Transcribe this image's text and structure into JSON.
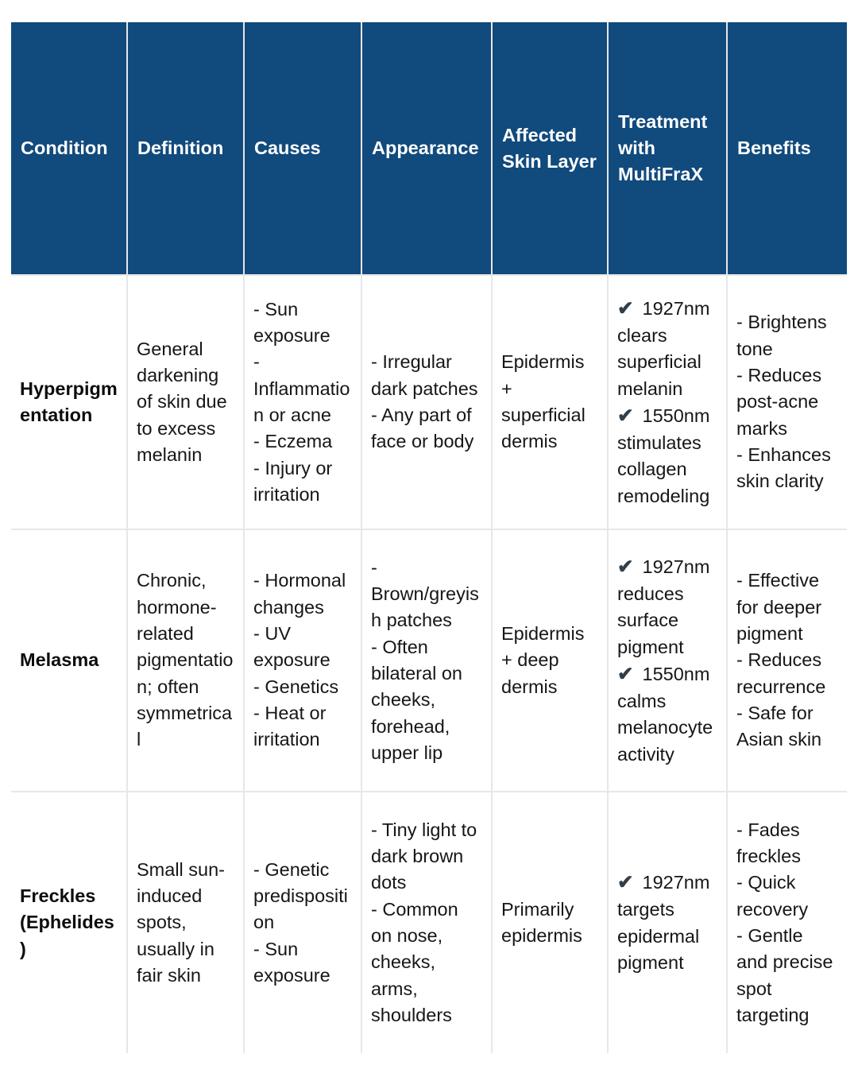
{
  "theme": {
    "accent_color": "#114A7C",
    "header_text_color": "#FFFFFF",
    "check_color": "#333E48",
    "grid_line_color": "#E7E7E7",
    "check_glyph": "✔"
  },
  "table": {
    "columns": [
      "Condition",
      "Definition",
      "Causes",
      "Appearance",
      "Affected Skin Layer",
      "Treatment with MultiFraX",
      "Benefits"
    ],
    "rows": [
      {
        "condition": "Hyperpigmentation",
        "definition": "General darkening of skin due to excess melanin",
        "causes": [
          "- Sun exposure",
          "- Inflammation or acne",
          "- Eczema",
          "- Injury or irritation"
        ],
        "appearance": [
          "- Irregular dark patches",
          "- Any part of face or body"
        ],
        "affected_skin_layer": "Epidermis + superficial dermis",
        "treatment": [
          "1927nm clears superficial melanin",
          "1550nm stimulates collagen remodeling"
        ],
        "benefits": [
          "- Brightens tone",
          "- Reduces post-acne marks",
          "- Enhances skin clarity"
        ]
      },
      {
        "condition": "Melasma",
        "definition": "Chronic, hormone-related pigmentation; often symmetrical",
        "causes": [
          "- Hormonal changes",
          "- UV exposure",
          "- Genetics",
          "- Heat or irritation"
        ],
        "appearance": [
          "- Brown/greyish patches",
          "- Often bilateral on cheeks, forehead, upper lip"
        ],
        "affected_skin_layer": "Epidermis + deep dermis",
        "treatment": [
          "1927nm reduces surface pigment",
          "1550nm calms melanocyte activity"
        ],
        "benefits": [
          "- Effective for deeper pigment",
          "- Reduces recurrence",
          "- Safe for Asian skin"
        ]
      },
      {
        "condition": "Freckles (Ephelides)",
        "definition": "Small sun-induced spots, usually in fair skin",
        "causes": [
          "- Genetic predisposition",
          "- Sun exposure"
        ],
        "appearance": [
          "- Tiny light to dark brown dots",
          "- Common on nose, cheeks, arms, shoulders"
        ],
        "affected_skin_layer": "Primarily epidermis",
        "treatment": [
          "1927nm targets epidermal pigment"
        ],
        "benefits": [
          "- Fades freckles",
          "- Quick recovery",
          "- Gentle and precise spot targeting"
        ]
      }
    ]
  }
}
